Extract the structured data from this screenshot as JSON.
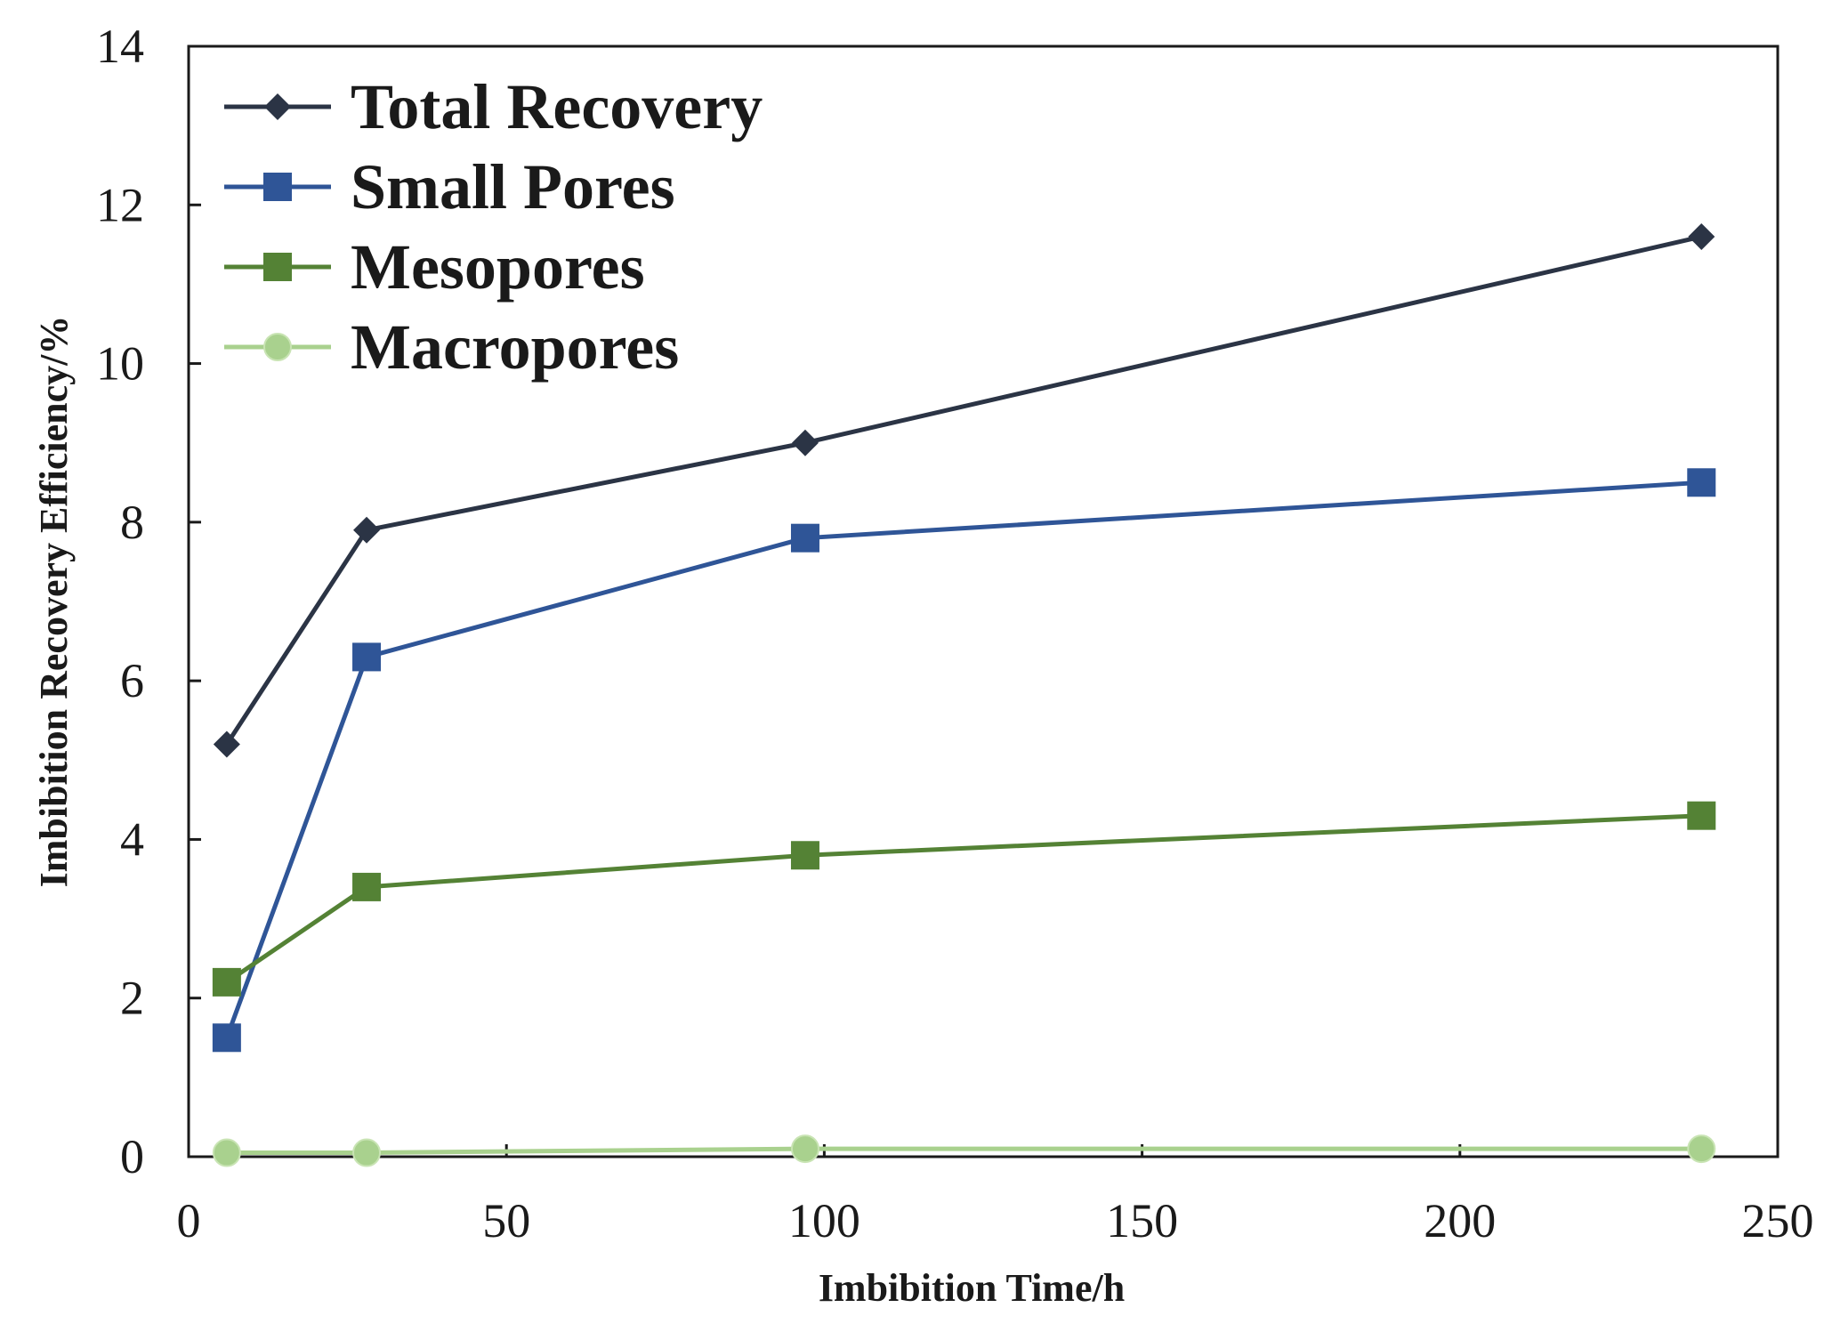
{
  "chart_data": {
    "type": "line",
    "title": "",
    "xlabel": "Imbibition Time/h",
    "ylabel": "Imbibition Recovery Efficiency/%",
    "xlim": [
      0,
      250
    ],
    "ylim": [
      0,
      14
    ],
    "xticks": [
      0,
      50,
      100,
      150,
      200,
      250
    ],
    "yticks": [
      0,
      2,
      4,
      6,
      8,
      10,
      12,
      14
    ],
    "x": [
      6,
      28,
      97,
      238
    ],
    "legend_position": "top-left",
    "grid": false,
    "series": [
      {
        "name": "Total Recovery",
        "values": [
          5.2,
          7.9,
          9.0,
          11.6
        ],
        "color": "#2b3445",
        "marker": "diamond"
      },
      {
        "name": "Small Pores",
        "values": [
          1.5,
          6.3,
          7.8,
          8.5
        ],
        "color": "#2f5597",
        "marker": "square"
      },
      {
        "name": "Mesopores",
        "values": [
          2.2,
          3.4,
          3.8,
          4.3
        ],
        "color": "#548235",
        "marker": "square"
      },
      {
        "name": "Macropores",
        "values": [
          0.05,
          0.05,
          0.1,
          0.1
        ],
        "color": "#a9d18e",
        "marker": "circle"
      }
    ]
  }
}
